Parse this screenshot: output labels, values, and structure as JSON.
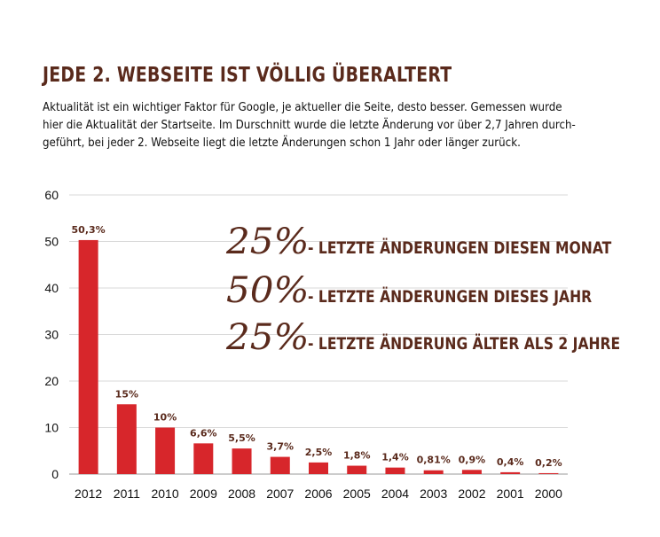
{
  "headline": "JEDE 2. WEBSEITE IST VÖLLIG ÜBERALTERT",
  "intro_lines": [
    "Aktualität ist ein wichtiger Faktor für Google, je aktueller die Seite, desto besser. Gemessen wurde",
    "hier die Aktualität der Startseite. Im Durschnitt wurde die letzte Änderung vor über 2,7 Jahren durch-",
    "geführt, bei jeder 2. Webseite liegt die letzte Änderungen schon 1 Jahr oder länger zurück."
  ],
  "stats": [
    {
      "pct": "25%",
      "text": "- LETZTE ÄNDERUNGEN DIESEN MONAT"
    },
    {
      "pct": "50%",
      "text": "- LETZTE ÄNDERUNGEN DIESES JAHR"
    },
    {
      "pct": "25%",
      "text": "- LETZTE ÄNDERUNG ÄLTER ALS 2 JAHRE"
    }
  ],
  "colors": {
    "bar": "#d7262b",
    "headline": "#5a2a1c",
    "grid": "#d9d9d9"
  },
  "chart_data": {
    "type": "bar",
    "categories": [
      "2012",
      "2011",
      "2010",
      "2009",
      "2008",
      "2007",
      "2006",
      "2005",
      "2004",
      "2003",
      "2002",
      "2001",
      "2000"
    ],
    "values": [
      50.3,
      15,
      10,
      6.6,
      5.5,
      3.7,
      2.5,
      1.8,
      1.4,
      0.81,
      0.9,
      0.4,
      0.2
    ],
    "data_labels": [
      "50,3%",
      "15%",
      "10%",
      "6,6%",
      "5,5%",
      "3,7%",
      "2,5%",
      "1,8%",
      "1,4%",
      "0,81%",
      "0,9%",
      "0,4%",
      "0,2%"
    ],
    "ylim": [
      0,
      60
    ],
    "yticks": [
      "0",
      "10",
      "20",
      "30",
      "40",
      "50",
      "60"
    ],
    "grid": true,
    "legend": "none"
  }
}
